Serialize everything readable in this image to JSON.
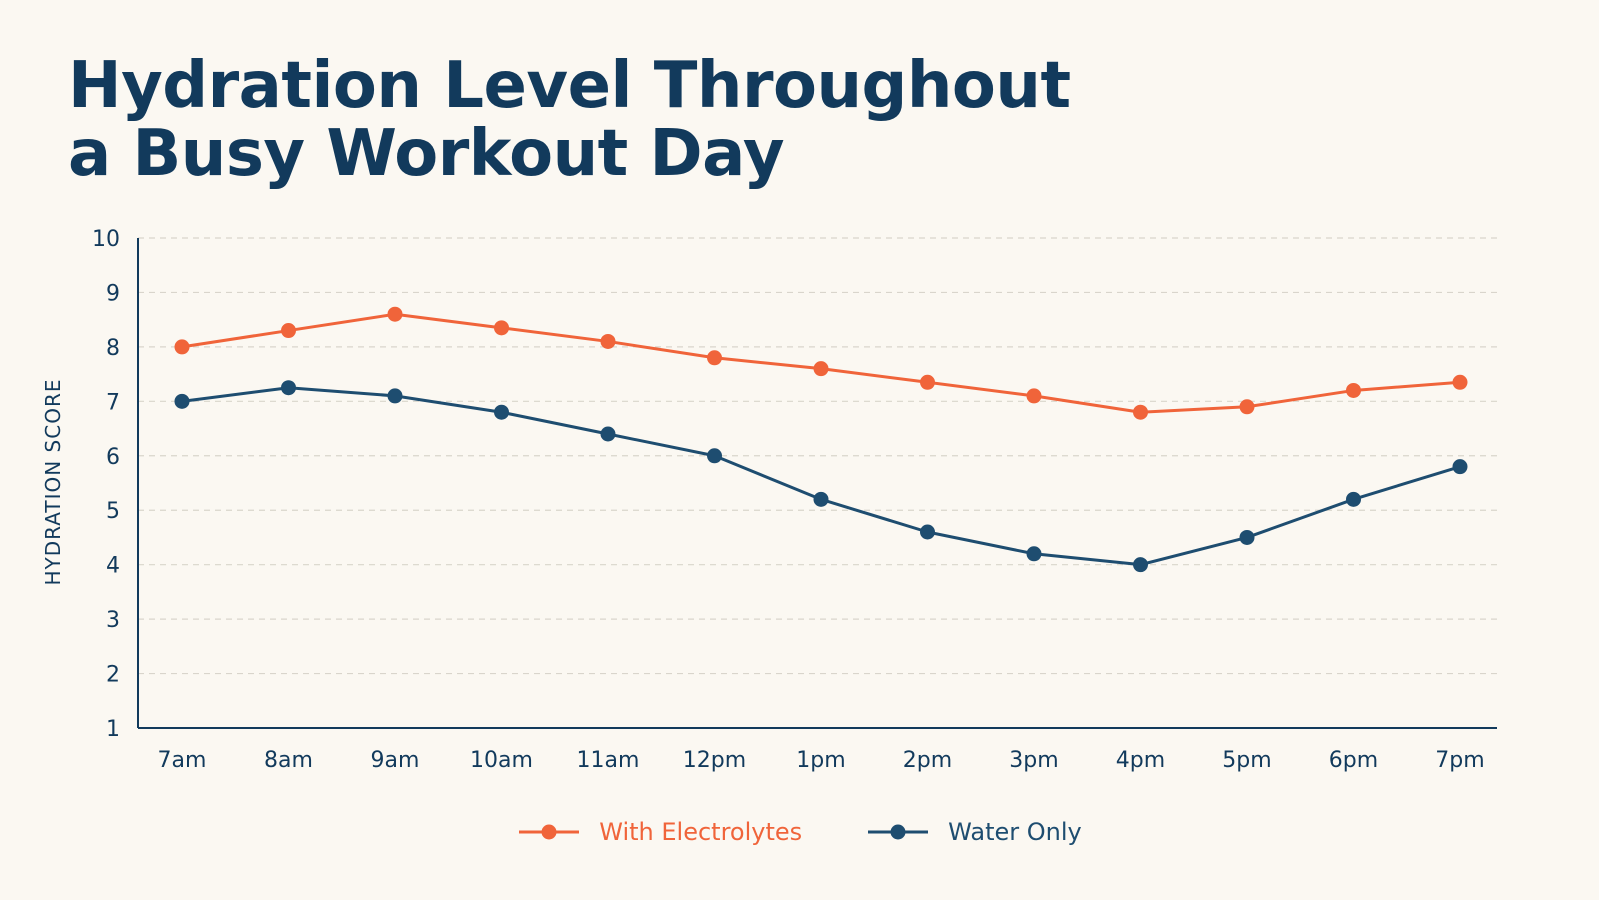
{
  "title_lines": [
    "Hydration Level Throughout",
    "a Busy Workout Day"
  ],
  "colors": {
    "background": "#fbf8f2",
    "text": "#123a5c",
    "electrolytes": "#f0643a",
    "water": "#1e4d70",
    "grid": "#d9d5cc",
    "axis": "#123a5c"
  },
  "chart_data": {
    "type": "line",
    "title": "Hydration Level Throughout a Busy Workout Day",
    "xlabel": "",
    "ylabel": "HYDRATION SCORE",
    "ylim": [
      1,
      10
    ],
    "yticks": [
      1,
      2,
      3,
      4,
      5,
      6,
      7,
      8,
      9,
      10
    ],
    "grid": true,
    "legend_position": "bottom",
    "categories": [
      "7am",
      "8am",
      "9am",
      "10am",
      "11am",
      "12pm",
      "1pm",
      "2pm",
      "3pm",
      "4pm",
      "5pm",
      "6pm",
      "7pm"
    ],
    "series": [
      {
        "name": "With Electrolytes",
        "color": "#f0643a",
        "values": [
          8.0,
          8.3,
          8.6,
          8.35,
          8.1,
          7.8,
          7.6,
          7.35,
          7.1,
          6.8,
          6.9,
          7.2,
          7.35
        ]
      },
      {
        "name": "Water Only",
        "color": "#1e4d70",
        "values": [
          7.0,
          7.25,
          7.1,
          6.8,
          6.4,
          6.0,
          5.2,
          4.6,
          4.2,
          4.0,
          4.5,
          5.2,
          5.8
        ]
      }
    ]
  }
}
